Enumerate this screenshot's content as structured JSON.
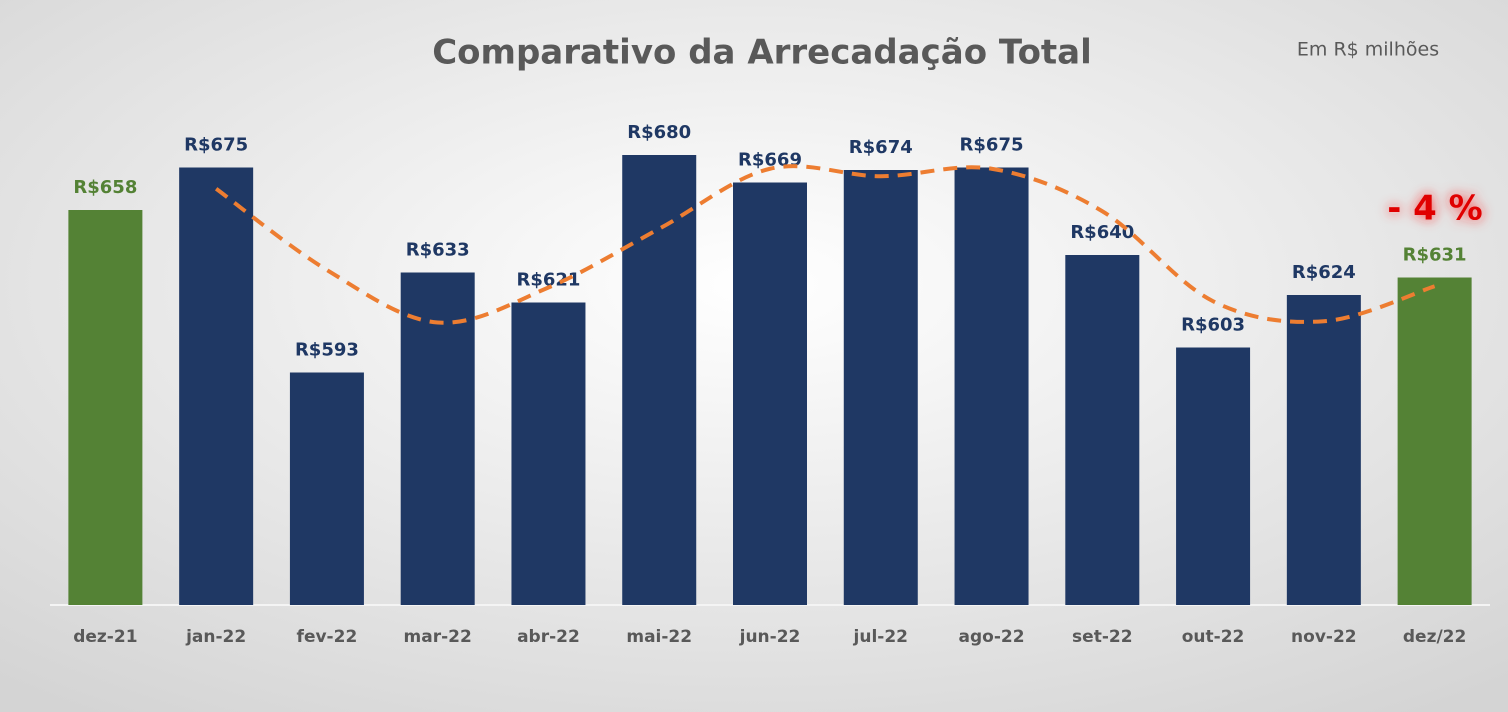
{
  "chart_data": {
    "type": "bar",
    "title": "Comparativo da Arrecadação Total",
    "annotations": [
      "Em R$ milhões",
      "- 4 %"
    ],
    "categories": [
      "dez-21",
      "jan-22",
      "fev-22",
      "mar-22",
      "abr-22",
      "mai-22",
      "jun-22",
      "jul-22",
      "ago-22",
      "set-22",
      "out-22",
      "nov-22",
      "dez/22"
    ],
    "values": [
      658,
      675,
      593,
      633,
      621,
      680,
      669,
      674,
      675,
      640,
      603,
      624,
      631
    ],
    "value_labels": [
      "R$658",
      "R$675",
      "R$593",
      "R$633",
      "R$621",
      "R$680",
      "R$669",
      "R$674",
      "R$675",
      "R$640",
      "R$603",
      "R$624",
      "R$631"
    ],
    "colors": [
      "#548235",
      "#1f3864",
      "#1f3864",
      "#1f3864",
      "#1f3864",
      "#1f3864",
      "#1f3864",
      "#1f3864",
      "#1f3864",
      "#1f3864",
      "#1f3864",
      "#1f3864",
      "#548235"
    ],
    "trend": {
      "color": "#ed7d31",
      "values": [
        null,
        666.5,
        634,
        613,
        627,
        650.5,
        674.5,
        671.5,
        674.5,
        657.5,
        621.5,
        613.5,
        627.5
      ]
    },
    "ylim": [
      500,
      720
    ]
  }
}
